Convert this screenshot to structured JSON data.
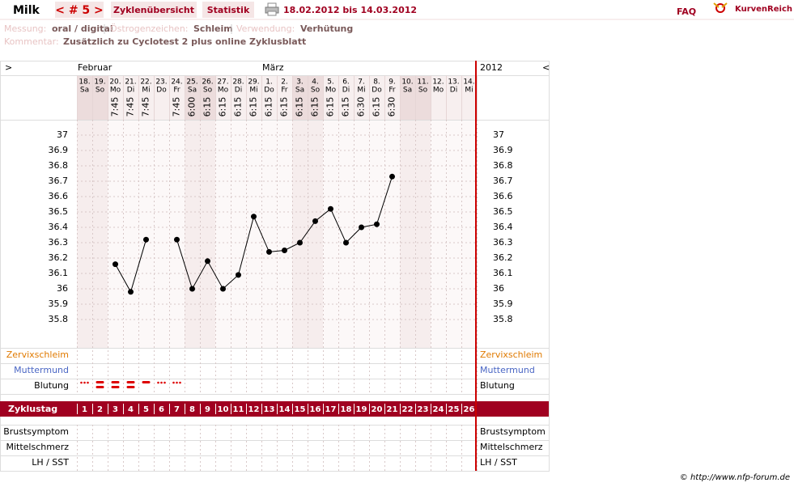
{
  "header": {
    "user": "Milk",
    "cycle": "< # 5 >",
    "tabs": [
      "Zyklenübersicht",
      "Statistik"
    ],
    "date_range": "18.02.2012 bis 14.03.2012",
    "faq": "FAQ",
    "logo": "KurvenReich"
  },
  "info": {
    "measurement_label": "Messung:",
    "measurement": "oral / digital",
    "estrogen_label": "Östrogenzeichen:",
    "estrogen": "Schleim",
    "usage_label": "Verwendung:",
    "usage": "Verhütung",
    "comment_label": "Kommentar:",
    "comment": "Zusätzlich zu Cyclotest 2 plus online Zyklusblatt"
  },
  "footer": "© http://www.nfp-forum.de",
  "chart_data": {
    "type": "line",
    "year": "2012",
    "nav_left": ">",
    "nav_right": "<",
    "month_labels": [
      "Februar",
      null,
      null,
      null,
      null,
      null,
      null,
      null,
      null,
      null,
      null,
      null,
      "März",
      null,
      null,
      null,
      null,
      null,
      null,
      null,
      null,
      null,
      null,
      null,
      null,
      null
    ],
    "days": [
      "18.",
      "19.",
      "20.",
      "21.",
      "22.",
      "23.",
      "24.",
      "25.",
      "26.",
      "27.",
      "28.",
      "29.",
      "1.",
      "2.",
      "3.",
      "4.",
      "5.",
      "6.",
      "7.",
      "8.",
      "9.",
      "10.",
      "11.",
      "12.",
      "13.",
      "14."
    ],
    "weekdays": [
      "Sa",
      "So",
      "Mo",
      "Di",
      "Mi",
      "Do",
      "Fr",
      "Sa",
      "So",
      "Mo",
      "Di",
      "Mi",
      "Do",
      "Fr",
      "Sa",
      "So",
      "Mo",
      "Di",
      "Mi",
      "Do",
      "Fr",
      "Sa",
      "So",
      "Mo",
      "Di",
      "Mi"
    ],
    "times": [
      null,
      null,
      "7:45",
      "7:45",
      "7:45",
      null,
      "7:45",
      "6:00",
      "6:15",
      "6:15",
      "6:15",
      "6:15",
      "6:15",
      "6:15",
      "6:15",
      "6:15",
      "6:15",
      "6:15",
      "6:30",
      "6:15",
      "6:30",
      null,
      null,
      null,
      null,
      null
    ],
    "values": [
      null,
      null,
      36.16,
      35.98,
      36.32,
      null,
      36.32,
      36.0,
      36.18,
      36.0,
      36.09,
      36.47,
      36.24,
      36.25,
      36.3,
      36.44,
      36.52,
      36.3,
      36.4,
      36.42,
      36.73,
      null,
      null,
      null,
      null,
      null
    ],
    "color": "#000000",
    "ylim": [
      35.8,
      37
    ],
    "yticks": [
      37,
      36.9,
      36.8,
      36.7,
      36.6,
      36.5,
      36.4,
      36.3,
      36.2,
      36.1,
      36,
      35.9,
      35.8
    ],
    "grid": true,
    "row_labels": [
      "Zervixschleim",
      "Muttermund",
      "Blutung"
    ],
    "cycle_day_label": "Zyklustag",
    "cycle_days": [
      "1",
      "2",
      "3",
      "4",
      "5",
      "6",
      "7",
      "8",
      "9",
      "10",
      "11",
      "12",
      "13",
      "14",
      "15",
      "16",
      "17",
      "18",
      "19",
      "20",
      "21",
      "22",
      "23",
      "24",
      "25",
      "26"
    ],
    "lower_row_labels": [
      "Brustsymptom",
      "Mittelschmerz",
      "LH / SST"
    ]
  }
}
